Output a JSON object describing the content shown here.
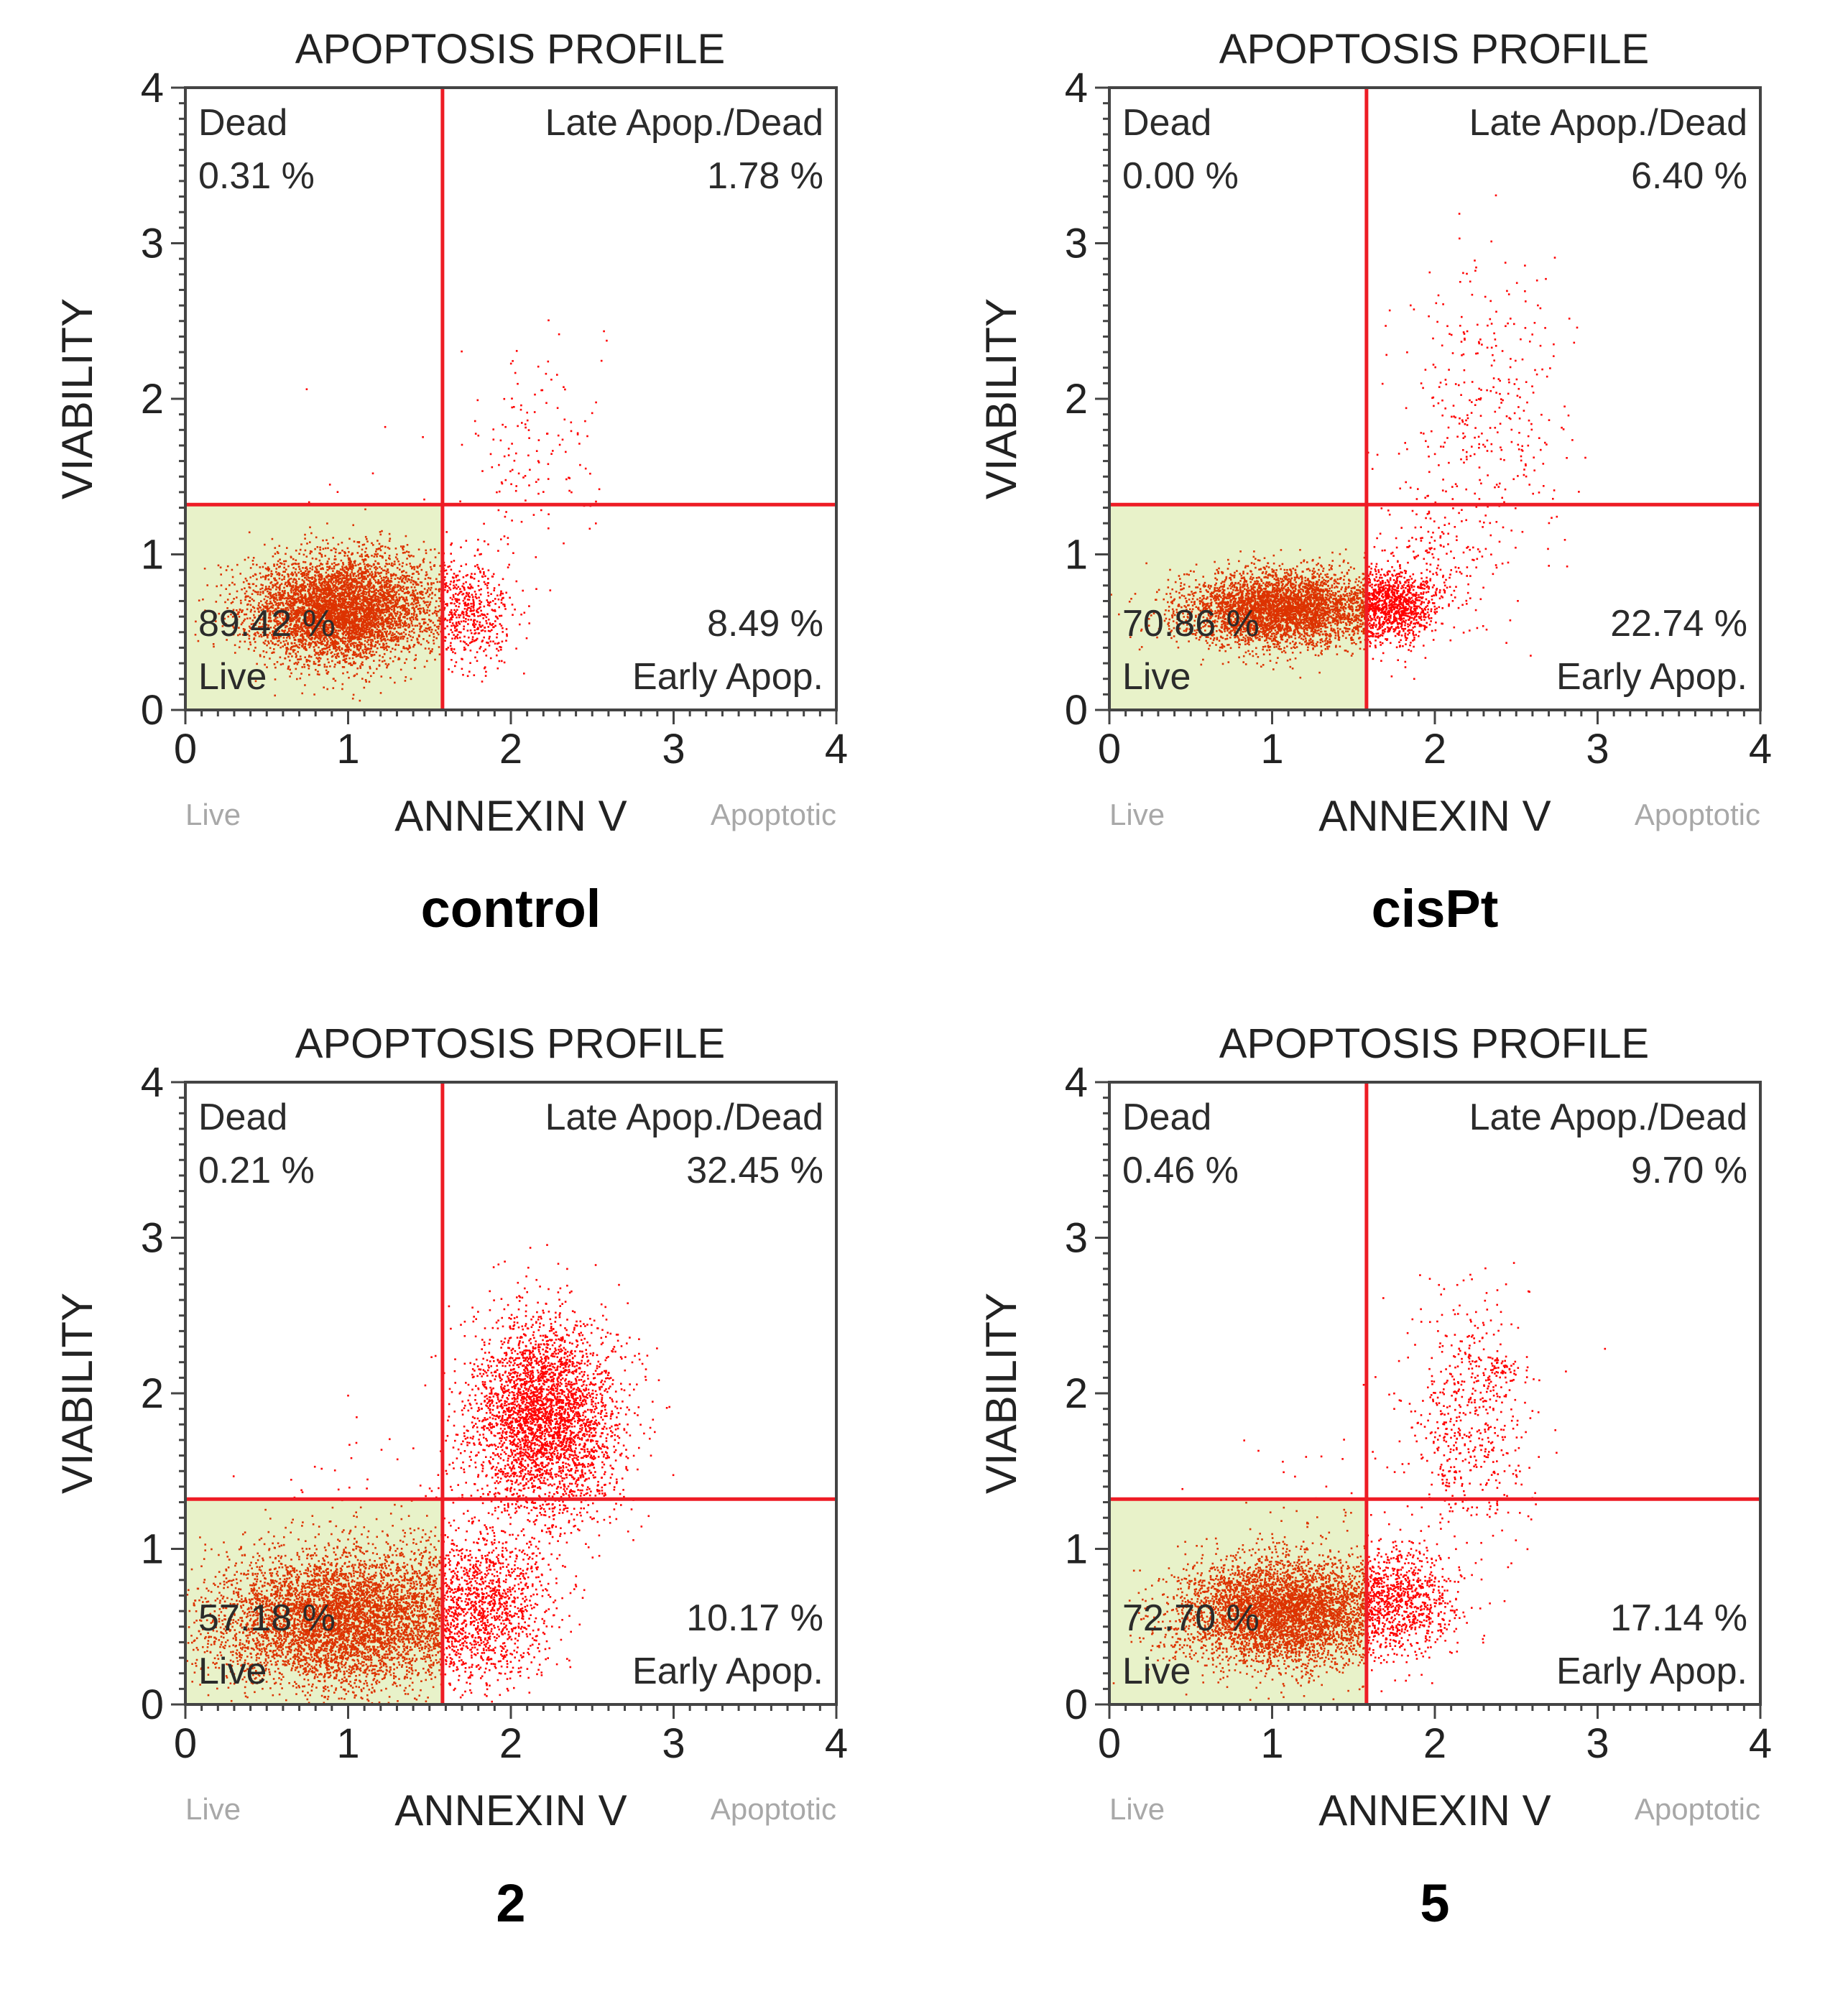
{
  "colors": {
    "gate_line": "#ee1c25",
    "live_gate_fill": "#e8f2c9",
    "dot": "#ff0000",
    "live_dot": "#dd3300"
  },
  "chart_data": [
    {
      "type": "scatter",
      "title": "APOPTOSIS PROFILE",
      "caption": "control",
      "xlabel": "ANNEXIN V",
      "ylabel": "VIABILITY",
      "x_end_labels": {
        "left": "Live",
        "right": "Apoptotic"
      },
      "xlim": [
        0,
        4
      ],
      "ylim": [
        0,
        4
      ],
      "xticks": [
        "0",
        "1",
        "2",
        "3",
        "4"
      ],
      "yticks": [
        "0",
        "1",
        "2",
        "3",
        "4"
      ],
      "gate": {
        "x": 1.58,
        "y": 1.32
      },
      "quadrants": {
        "dead": {
          "name": "Dead",
          "value": "0.31 %"
        },
        "late": {
          "name": "Late Apop./Dead",
          "value": "1.78 %"
        },
        "live": {
          "name": "Live",
          "value": "89.42 %"
        },
        "early": {
          "name": "Early Apop.",
          "value": "8.49 %"
        }
      },
      "clusters": [
        {
          "cx": 0.95,
          "cy": 0.65,
          "sx": 0.28,
          "sy": 0.17,
          "n": 5000
        },
        {
          "cx": 1.75,
          "cy": 0.65,
          "sx": 0.14,
          "sy": 0.18,
          "n": 500
        },
        {
          "cx": 2.1,
          "cy": 1.7,
          "sx": 0.22,
          "sy": 0.35,
          "n": 130
        },
        {
          "cx": 1.3,
          "cy": 1.0,
          "sx": 0.4,
          "sy": 0.4,
          "n": 40
        }
      ]
    },
    {
      "type": "scatter",
      "title": "APOPTOSIS PROFILE",
      "caption": "cisPt",
      "xlabel": "ANNEXIN V",
      "ylabel": "VIABILITY",
      "x_end_labels": {
        "left": "Live",
        "right": "Apoptotic"
      },
      "xlim": [
        0,
        4
      ],
      "ylim": [
        0,
        4
      ],
      "xticks": [
        "0",
        "1",
        "2",
        "3",
        "4"
      ],
      "yticks": [
        "0",
        "1",
        "2",
        "3",
        "4"
      ],
      "gate": {
        "x": 1.58,
        "y": 1.32
      },
      "quadrants": {
        "dead": {
          "name": "Dead",
          "value": "0.00 %"
        },
        "late": {
          "name": "Late Apop./Dead",
          "value": "6.40 %"
        },
        "live": {
          "name": "Live",
          "value": "70.86 %"
        },
        "early": {
          "name": "Early Apop.",
          "value": "22.74 %"
        }
      },
      "clusters": [
        {
          "cx": 1.05,
          "cy": 0.65,
          "sx": 0.3,
          "sy": 0.12,
          "n": 4000
        },
        {
          "cx": 1.75,
          "cy": 0.68,
          "sx": 0.14,
          "sy": 0.12,
          "n": 1000
        },
        {
          "cx": 2.3,
          "cy": 1.9,
          "sx": 0.25,
          "sy": 0.5,
          "n": 350
        },
        {
          "cx": 2.0,
          "cy": 1.0,
          "sx": 0.2,
          "sy": 0.25,
          "n": 150
        }
      ]
    },
    {
      "type": "scatter",
      "title": "APOPTOSIS PROFILE",
      "caption": "2",
      "xlabel": "ANNEXIN V",
      "ylabel": "VIABILITY",
      "x_end_labels": {
        "left": "Live",
        "right": "Apoptotic"
      },
      "xlim": [
        0,
        4
      ],
      "ylim": [
        0,
        4
      ],
      "xticks": [
        "0",
        "1",
        "2",
        "3",
        "4"
      ],
      "yticks": [
        "0",
        "1",
        "2",
        "3",
        "4"
      ],
      "gate": {
        "x": 1.58,
        "y": 1.32
      },
      "quadrants": {
        "dead": {
          "name": "Dead",
          "value": "0.21 %"
        },
        "late": {
          "name": "Late Apop./Dead",
          "value": "32.45 %"
        },
        "live": {
          "name": "Live",
          "value": "57.18 %"
        },
        "early": {
          "name": "Early Apop.",
          "value": "10.17 %"
        }
      },
      "clusters": [
        {
          "cx": 0.95,
          "cy": 0.55,
          "sx": 0.4,
          "sy": 0.22,
          "n": 5500
        },
        {
          "cx": 1.85,
          "cy": 0.65,
          "sx": 0.2,
          "sy": 0.25,
          "n": 1100
        },
        {
          "cx": 2.2,
          "cy": 1.85,
          "sx": 0.22,
          "sy": 0.32,
          "n": 3400
        },
        {
          "cx": 1.4,
          "cy": 1.3,
          "sx": 0.45,
          "sy": 0.35,
          "n": 120
        }
      ]
    },
    {
      "type": "scatter",
      "title": "APOPTOSIS PROFILE",
      "caption": "5",
      "xlabel": "ANNEXIN V",
      "ylabel": "VIABILITY",
      "x_end_labels": {
        "left": "Live",
        "right": "Apoptotic"
      },
      "xlim": [
        0,
        4
      ],
      "ylim": [
        0,
        4
      ],
      "xticks": [
        "0",
        "1",
        "2",
        "3",
        "4"
      ],
      "yticks": [
        "0",
        "1",
        "2",
        "3",
        "4"
      ],
      "gate": {
        "x": 1.58,
        "y": 1.32
      },
      "quadrants": {
        "dead": {
          "name": "Dead",
          "value": "0.46 %"
        },
        "late": {
          "name": "Late Apop./Dead",
          "value": "9.70 %"
        },
        "live": {
          "name": "Live",
          "value": "72.70 %"
        },
        "early": {
          "name": "Early Apop.",
          "value": "17.14 %"
        }
      },
      "clusters": [
        {
          "cx": 1.05,
          "cy": 0.6,
          "sx": 0.32,
          "sy": 0.17,
          "n": 4500
        },
        {
          "cx": 1.8,
          "cy": 0.7,
          "sx": 0.18,
          "sy": 0.18,
          "n": 800
        },
        {
          "cx": 2.2,
          "cy": 1.8,
          "sx": 0.2,
          "sy": 0.38,
          "n": 550
        },
        {
          "cx": 2.4,
          "cy": 2.15,
          "sx": 0.08,
          "sy": 0.05,
          "n": 60
        },
        {
          "cx": 1.2,
          "cy": 1.3,
          "sx": 0.35,
          "sy": 0.3,
          "n": 40
        }
      ]
    }
  ]
}
